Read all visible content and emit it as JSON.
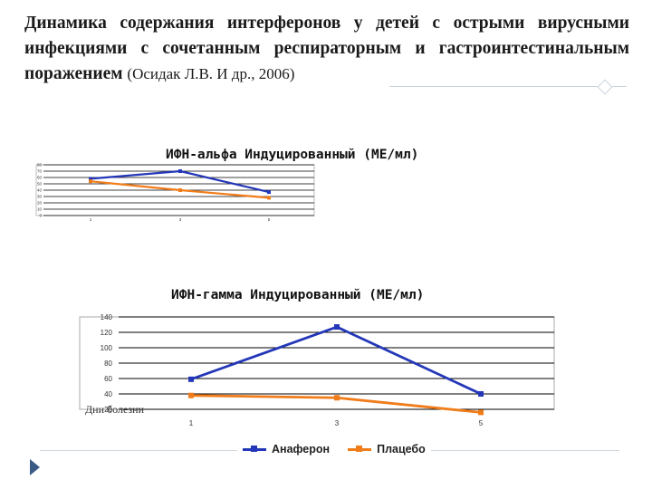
{
  "slide": {
    "title_main": "Динамика содержания интерферонов у детей с острыми вирусными инфекциями с сочетанным респираторным и гастроинтестинальным поражением",
    "title_source": "(Осидак Л.В. И др., 2006)"
  },
  "legend": {
    "anaferon": "Анаферон",
    "placebo": "Плацебо"
  },
  "days_label": "Дни болезни",
  "colors": {
    "anaferon": "#2337b8",
    "placebo": "#f07c1a",
    "grid": "#000000"
  },
  "chart_data": [
    {
      "type": "line",
      "title": "ИФН-альфа Индуцированный (МЕ/мл)",
      "categories": [
        "1",
        "3",
        "5"
      ],
      "ylim": [
        0,
        80
      ],
      "yticks": [
        "0",
        "10",
        "20",
        "30",
        "40",
        "50",
        "60",
        "70",
        "80"
      ],
      "grid": true,
      "series": [
        {
          "name": "Анаферон",
          "values": [
            58,
            70,
            37
          ]
        },
        {
          "name": "Плацебо",
          "values": [
            54,
            40,
            28
          ]
        }
      ]
    },
    {
      "type": "line",
      "title": "ИФН-гамма Индуцированный (МЕ/мл)",
      "categories": [
        "1",
        "3",
        "5"
      ],
      "ylim": [
        20,
        140
      ],
      "yticks": [
        "20",
        "40",
        "60",
        "80",
        "100",
        "120",
        "140"
      ],
      "grid": true,
      "series": [
        {
          "name": "Анаферон",
          "values": [
            59,
            127,
            40
          ]
        },
        {
          "name": "Плацебо",
          "values": [
            38,
            35,
            16
          ]
        }
      ]
    }
  ]
}
